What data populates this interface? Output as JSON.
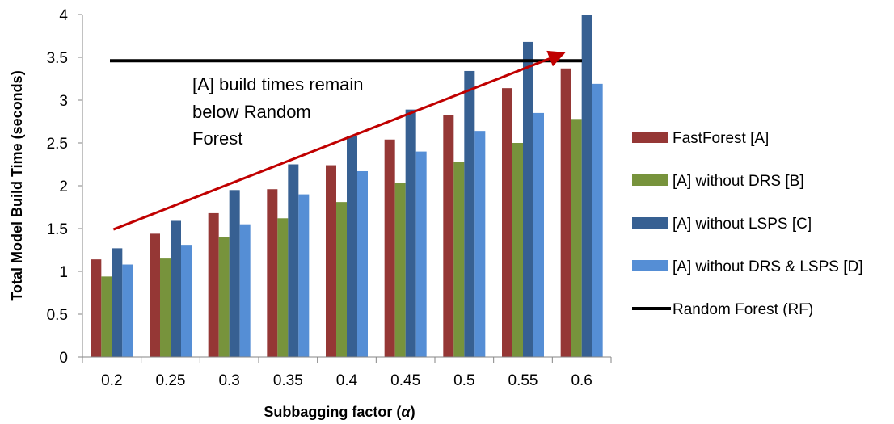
{
  "chart_data": {
    "type": "bar",
    "xlabel_prefix": "Subbagging factor (",
    "xlabel_symbol": "α",
    "xlabel_suffix": ")",
    "ylabel": "Total Model Build Time (seconds)",
    "categories": [
      "0.2",
      "0.25",
      "0.3",
      "0.35",
      "0.4",
      "0.45",
      "0.5",
      "0.55",
      "0.6"
    ],
    "ylim": [
      0,
      4
    ],
    "yticks": [
      "0",
      "0.5",
      "1",
      "1.5",
      "2",
      "2.5",
      "3",
      "3.5",
      "4"
    ],
    "grid": false,
    "legend_position": "right",
    "series": [
      {
        "name": "FastForest [A]",
        "color": "#953735",
        "values": [
          1.14,
          1.44,
          1.68,
          1.96,
          2.24,
          2.54,
          2.83,
          3.14,
          3.37
        ]
      },
      {
        "name": "[A] without DRS [B]",
        "color": "#77933c",
        "values": [
          0.94,
          1.15,
          1.4,
          1.62,
          1.81,
          2.03,
          2.28,
          2.5,
          2.78
        ]
      },
      {
        "name": "[A] without LSPS [C]",
        "color": "#376092",
        "values": [
          1.27,
          1.59,
          1.95,
          2.25,
          2.58,
          2.89,
          3.34,
          3.68,
          4.0
        ]
      },
      {
        "name": "[A] without DRS & LSPS [D]",
        "color": "#558ed5",
        "values": [
          1.08,
          1.31,
          1.55,
          1.9,
          2.17,
          2.4,
          2.64,
          2.85,
          3.19
        ]
      }
    ],
    "reference_line": {
      "name": "Random Forest (RF)",
      "value": 3.46,
      "color": "#000000"
    },
    "trend_arrow": {
      "from": {
        "category": "0.2",
        "y": 1.49
      },
      "to": {
        "category": "0.6",
        "y": 3.55
      },
      "color": "#c00000"
    },
    "annotation_lines": [
      "[A] build times remain",
      "below Random",
      "Forest"
    ]
  }
}
